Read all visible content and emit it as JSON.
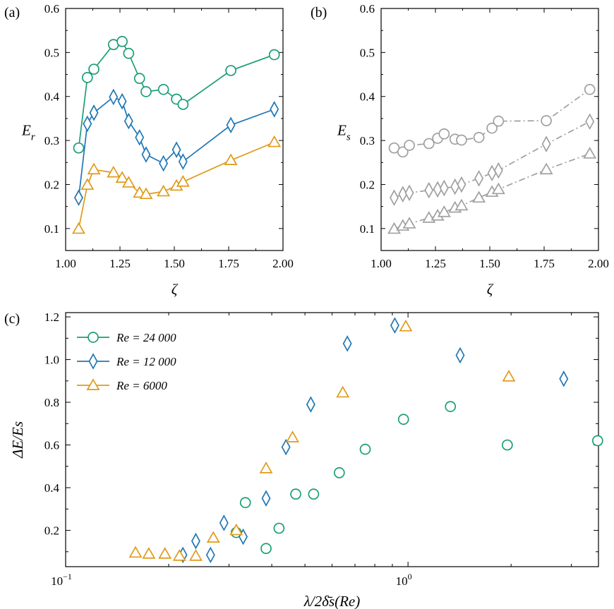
{
  "colors": {
    "green": "#1b9e77",
    "blue": "#1f77b4",
    "orange": "#e09a1a",
    "gray": "#a0a0a0"
  },
  "panels": {
    "a": "(a)",
    "b": "(b)",
    "c": "(c)"
  },
  "chart_data": [
    {
      "panel": "a",
      "type": "line",
      "xlabel": "ζ",
      "ylabel_main": "E",
      "ylabel_sub": "r",
      "xlim": [
        1.0,
        2.0
      ],
      "ylim": [
        0.05,
        0.6
      ],
      "xticks": [
        "1.00",
        "1.25",
        "1.50",
        "1.75",
        "2.00"
      ],
      "yticks": [
        "0.1",
        "0.2",
        "0.3",
        "0.4",
        "0.5",
        "0.6"
      ],
      "series": [
        {
          "color": "green",
          "marker": "circle",
          "line": "solid",
          "x": [
            1.06,
            1.1,
            1.13,
            1.22,
            1.26,
            1.29,
            1.34,
            1.37,
            1.45,
            1.51,
            1.54,
            1.76,
            1.96
          ],
          "y": [
            0.283,
            0.443,
            0.462,
            0.518,
            0.525,
            0.498,
            0.441,
            0.411,
            0.416,
            0.394,
            0.382,
            0.459,
            0.495
          ]
        },
        {
          "color": "blue",
          "marker": "diamond",
          "line": "solid",
          "x": [
            1.06,
            1.1,
            1.13,
            1.22,
            1.26,
            1.29,
            1.34,
            1.37,
            1.45,
            1.51,
            1.54,
            1.76,
            1.96
          ],
          "y": [
            0.17,
            0.338,
            0.363,
            0.399,
            0.389,
            0.344,
            0.307,
            0.268,
            0.248,
            0.279,
            0.252,
            0.335,
            0.371
          ]
        },
        {
          "color": "orange",
          "marker": "triangle",
          "line": "solid",
          "x": [
            1.06,
            1.1,
            1.13,
            1.22,
            1.26,
            1.29,
            1.34,
            1.37,
            1.45,
            1.51,
            1.54,
            1.76,
            1.96
          ],
          "y": [
            0.099,
            0.199,
            0.234,
            0.227,
            0.215,
            0.204,
            0.181,
            0.178,
            0.184,
            0.197,
            0.206,
            0.255,
            0.296
          ]
        }
      ]
    },
    {
      "panel": "b",
      "type": "line",
      "xlabel": "ζ",
      "ylabel_main": "E",
      "ylabel_sub": "s",
      "xlim": [
        1.0,
        2.0
      ],
      "ylim": [
        0.05,
        0.6
      ],
      "xticks": [
        "1.00",
        "1.25",
        "1.50",
        "1.75",
        "2.00"
      ],
      "yticks": [
        "0.1",
        "0.2",
        "0.3",
        "0.4",
        "0.5",
        "0.6"
      ],
      "series": [
        {
          "color": "gray",
          "marker": "circle",
          "line": "dashdot",
          "x": [
            1.06,
            1.1,
            1.13,
            1.22,
            1.26,
            1.29,
            1.34,
            1.37,
            1.45,
            1.51,
            1.54,
            1.76,
            1.96
          ],
          "y": [
            0.283,
            0.274,
            0.289,
            0.293,
            0.305,
            0.315,
            0.303,
            0.301,
            0.307,
            0.328,
            0.344,
            0.345,
            0.416
          ]
        },
        {
          "color": "gray",
          "marker": "diamond",
          "line": "dashdot",
          "x": [
            1.06,
            1.1,
            1.13,
            1.22,
            1.26,
            1.29,
            1.34,
            1.37,
            1.45,
            1.51,
            1.54,
            1.76,
            1.96
          ],
          "y": [
            0.17,
            0.178,
            0.181,
            0.187,
            0.189,
            0.192,
            0.195,
            0.2,
            0.214,
            0.226,
            0.232,
            0.292,
            0.343
          ]
        },
        {
          "color": "gray",
          "marker": "triangle",
          "line": "dashdot",
          "x": [
            1.06,
            1.1,
            1.13,
            1.22,
            1.26,
            1.29,
            1.34,
            1.37,
            1.45,
            1.51,
            1.54,
            1.76,
            1.96
          ],
          "y": [
            0.099,
            0.106,
            0.111,
            0.124,
            0.129,
            0.137,
            0.147,
            0.152,
            0.17,
            0.183,
            0.189,
            0.234,
            0.27
          ]
        }
      ]
    },
    {
      "panel": "c",
      "type": "scatter",
      "xlabel": "λ/2δ̄s(Re)",
      "ylabel": "ΔE/Es",
      "xscale": "log",
      "xlim": [
        0.1,
        3.6
      ],
      "ylim": [
        0.03,
        1.22
      ],
      "xticks": [
        0.1,
        1
      ],
      "xtick_labels": [
        {
          "base": "10",
          "exp": "−1"
        },
        {
          "base": "10",
          "exp": "0"
        }
      ],
      "yticks": [
        "0.2",
        "0.4",
        "0.6",
        "0.8",
        "1.0",
        "1.2"
      ],
      "legend": {
        "position": "top-left",
        "entries": [
          {
            "color": "green",
            "marker": "circle",
            "label": "Re = 24 000"
          },
          {
            "color": "blue",
            "marker": "diamond",
            "label": "Re = 12 000"
          },
          {
            "color": "orange",
            "marker": "triangle",
            "label": "Re = 6000"
          }
        ]
      },
      "series": [
        {
          "color": "green",
          "marker": "circle",
          "x": [
            0.315,
            0.335,
            0.385,
            0.42,
            0.47,
            0.53,
            0.63,
            0.75,
            0.97,
            1.33,
            1.95,
            3.58
          ],
          "y": [
            0.19,
            0.33,
            0.115,
            0.21,
            0.37,
            0.37,
            0.47,
            0.58,
            0.72,
            0.78,
            0.6,
            0.62
          ]
        },
        {
          "color": "blue",
          "marker": "diamond",
          "x": [
            0.22,
            0.24,
            0.265,
            0.29,
            0.33,
            0.385,
            0.44,
            0.52,
            0.665,
            0.915,
            1.42,
            2.85
          ],
          "y": [
            0.085,
            0.15,
            0.085,
            0.235,
            0.17,
            0.35,
            0.59,
            0.79,
            1.075,
            1.16,
            1.02,
            0.91
          ]
        },
        {
          "color": "orange",
          "marker": "triangle",
          "x": [
            0.16,
            0.175,
            0.195,
            0.215,
            0.24,
            0.27,
            0.315,
            0.385,
            0.46,
            0.645,
            0.985,
            1.97
          ],
          "y": [
            0.095,
            0.09,
            0.09,
            0.08,
            0.08,
            0.165,
            0.2,
            0.49,
            0.635,
            0.845,
            1.155,
            0.92
          ]
        }
      ]
    }
  ]
}
